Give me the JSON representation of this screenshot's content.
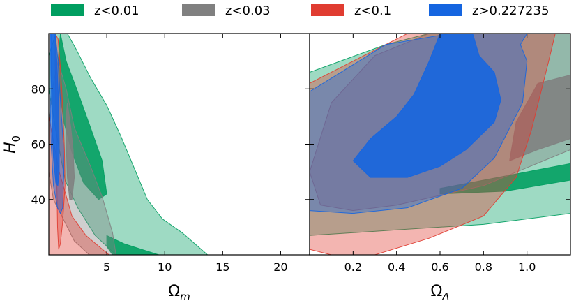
{
  "chart_data": {
    "type": "area",
    "legend": {
      "placement": "top",
      "entries": [
        {
          "label": "z<0.01",
          "color": "#009e60"
        },
        {
          "label": "z<0.03",
          "color": "#808080"
        },
        {
          "label": "z<0.1",
          "color": "#e03c31"
        },
        {
          "label": "z>0.227235",
          "color": "#1565e0"
        }
      ]
    },
    "ylabel": {
      "main": "H",
      "sub": "0"
    },
    "ylim": [
      20,
      100
    ],
    "yticks": [
      40,
      60,
      80
    ],
    "ytick_labels": [
      "40",
      "60",
      "80"
    ],
    "panels": [
      {
        "xlabel": {
          "main": "Ω",
          "sub": "m"
        },
        "xlim": [
          0,
          22.5
        ],
        "xticks": [
          5,
          10,
          15,
          20
        ],
        "xtick_labels": [
          "5",
          "10",
          "15",
          "20"
        ],
        "regions": [
          {
            "series": "z<0.01",
            "level": "outer",
            "points": [
              [
                0.6,
                100
              ],
              [
                1.6,
                100
              ],
              [
                2.4,
                94
              ],
              [
                3.6,
                84
              ],
              [
                5,
                74
              ],
              [
                6.2,
                63
              ],
              [
                7.5,
                50
              ],
              [
                8.5,
                40
              ],
              [
                9.8,
                33
              ],
              [
                11.5,
                28
              ],
              [
                13.7,
                20
              ],
              [
                5.8,
                20
              ],
              [
                4,
                27
              ],
              [
                2.5,
                37
              ],
              [
                1.4,
                47
              ],
              [
                0.6,
                65
              ],
              [
                0,
                80
              ],
              [
                0,
                92
              ]
            ]
          },
          {
            "series": "z<0.01",
            "level": "inner",
            "points": [
              [
                1,
                100
              ],
              [
                1.5,
                90
              ],
              [
                2.4,
                80
              ],
              [
                3.6,
                66
              ],
              [
                4.6,
                54
              ],
              [
                5,
                42
              ],
              [
                4.3,
                40
              ],
              [
                3,
                46
              ],
              [
                2,
                57
              ],
              [
                1.3,
                68
              ],
              [
                0.9,
                80
              ],
              [
                0.8,
                90
              ]
            ]
          },
          {
            "series": "z<0.01",
            "level": "inner",
            "points": [
              [
                5,
                27
              ],
              [
                6.5,
                24
              ],
              [
                8,
                22
              ],
              [
                9.5,
                20
              ],
              [
                5.5,
                20
              ],
              [
                5,
                23
              ]
            ]
          },
          {
            "series": "z<0.03",
            "level": "outer",
            "points": [
              [
                0.8,
                90
              ],
              [
                1.5,
                80
              ],
              [
                2.2,
                66
              ],
              [
                3.6,
                52
              ],
              [
                4.6,
                41
              ],
              [
                5.5,
                28
              ],
              [
                5.8,
                20
              ],
              [
                3.5,
                20
              ],
              [
                2.2,
                25
              ],
              [
                0.4,
                40
              ],
              [
                0,
                50
              ],
              [
                0,
                68
              ],
              [
                0.3,
                80
              ]
            ]
          },
          {
            "series": "z<0.03",
            "level": "inner",
            "points": [
              [
                1.6,
                75
              ],
              [
                1.9,
                66
              ],
              [
                2.1,
                58
              ],
              [
                2.2,
                48
              ],
              [
                2.0,
                40
              ],
              [
                1.8,
                40
              ],
              [
                1.6,
                48
              ],
              [
                1.5,
                60
              ],
              [
                1.5,
                70
              ]
            ]
          },
          {
            "series": "z<0.1",
            "level": "outer",
            "points": [
              [
                0.55,
                100
              ],
              [
                0.8,
                98
              ],
              [
                1.0,
                88
              ],
              [
                1.2,
                74
              ],
              [
                1.35,
                58
              ],
              [
                1.4,
                45
              ],
              [
                1.2,
                32
              ],
              [
                1.0,
                24
              ],
              [
                0.85,
                22
              ],
              [
                0.75,
                30
              ],
              [
                0.7,
                45
              ],
              [
                0.65,
                60
              ],
              [
                0.6,
                75
              ],
              [
                0.55,
                90
              ]
            ]
          },
          {
            "series": "z<0.1",
            "level": "outer",
            "points": [
              [
                0,
                70
              ],
              [
                0.9,
                50
              ],
              [
                2,
                34
              ],
              [
                3.2,
                27
              ],
              [
                5.2,
                20
              ],
              [
                0,
                20
              ]
            ]
          },
          {
            "series": "z>0.227235",
            "level": "outer",
            "points": [
              [
                0.15,
                100
              ],
              [
                0.55,
                100
              ],
              [
                0.8,
                90
              ],
              [
                1.0,
                76
              ],
              [
                1.25,
                60
              ],
              [
                1.3,
                50
              ],
              [
                1.2,
                37
              ],
              [
                1.0,
                35
              ],
              [
                0.75,
                37
              ],
              [
                0.4,
                45
              ],
              [
                0.2,
                60
              ],
              [
                0.1,
                80
              ]
            ]
          },
          {
            "series": "z>0.227235",
            "level": "inner",
            "points": [
              [
                0.2,
                100
              ],
              [
                0.55,
                100
              ],
              [
                0.7,
                90
              ],
              [
                0.85,
                75
              ],
              [
                0.9,
                60
              ],
              [
                0.9,
                50
              ],
              [
                0.78,
                45
              ],
              [
                0.6,
                46
              ],
              [
                0.4,
                55
              ],
              [
                0.25,
                70
              ],
              [
                0.2,
                85
              ]
            ]
          }
        ]
      },
      {
        "xlabel": {
          "main": "Ω",
          "sub": "Λ"
        },
        "xlim": [
          0,
          1.2
        ],
        "xticks": [
          0.2,
          0.4,
          0.6,
          0.8,
          1.0
        ],
        "xtick_labels": [
          "0.2",
          "0.4",
          "0.6",
          "0.8",
          "1.0"
        ],
        "regions": [
          {
            "series": "z<0.01",
            "level": "outer",
            "points": [
              [
                0,
                100
              ],
              [
                1.2,
                100
              ],
              [
                1.2,
                35
              ],
              [
                0.8,
                31
              ],
              [
                0.4,
                29
              ],
              [
                0,
                27
              ],
              [
                0,
                86
              ],
              [
                0.35,
                96
              ],
              [
                0.55,
                100
              ]
            ]
          },
          {
            "series": "z<0.01",
            "level": "inner",
            "points": [
              [
                0.6,
                44
              ],
              [
                1.2,
                53
              ],
              [
                1.2,
                47
              ],
              [
                0.9,
                43
              ],
              [
                0.6,
                42
              ]
            ]
          },
          {
            "series": "z<0.03",
            "level": "outer",
            "points": [
              [
                0.55,
                100
              ],
              [
                1.2,
                100
              ],
              [
                1.2,
                58
              ],
              [
                0.8,
                45
              ],
              [
                0.4,
                38
              ],
              [
                0.2,
                36
              ],
              [
                0.05,
                38
              ],
              [
                0,
                50
              ],
              [
                0.1,
                75
              ],
              [
                0.3,
                92
              ]
            ]
          },
          {
            "series": "z<0.03",
            "level": "inner",
            "points": [
              [
                1.05,
                82
              ],
              [
                1.2,
                85
              ],
              [
                1.2,
                62
              ],
              [
                1.05,
                58
              ],
              [
                0.92,
                54
              ],
              [
                0.95,
                68
              ]
            ]
          },
          {
            "series": "z<0.1",
            "level": "outer",
            "points": [
              [
                0.1,
                20
              ],
              [
                0.3,
                20
              ],
              [
                0.55,
                26
              ],
              [
                0.8,
                34
              ],
              [
                0.95,
                48
              ],
              [
                1.02,
                65
              ],
              [
                1.1,
                90
              ],
              [
                1.13,
                100
              ],
              [
                0.45,
                100
              ],
              [
                0.2,
                90
              ],
              [
                0,
                82
              ],
              [
                0,
                22
              ]
            ]
          },
          {
            "series": "z>0.227235",
            "level": "outer",
            "points": [
              [
                0,
                36
              ],
              [
                0,
                79
              ],
              [
                0.35,
                96
              ],
              [
                0.65,
                100
              ],
              [
                1.0,
                100
              ],
              [
                0.97,
                96
              ],
              [
                1.0,
                90
              ],
              [
                0.98,
                75
              ],
              [
                0.85,
                55
              ],
              [
                0.7,
                44
              ],
              [
                0.45,
                37
              ],
              [
                0.2,
                35
              ]
            ]
          },
          {
            "series": "z>0.227235",
            "level": "inner",
            "points": [
              [
                0.2,
                54
              ],
              [
                0.28,
                62
              ],
              [
                0.4,
                70
              ],
              [
                0.48,
                78
              ],
              [
                0.55,
                90
              ],
              [
                0.6,
                100
              ],
              [
                0.75,
                100
              ],
              [
                0.78,
                92
              ],
              [
                0.85,
                86
              ],
              [
                0.88,
                76
              ],
              [
                0.85,
                68
              ],
              [
                0.72,
                58
              ],
              [
                0.6,
                52
              ],
              [
                0.45,
                48
              ],
              [
                0.28,
                48
              ]
            ]
          }
        ]
      }
    ]
  }
}
